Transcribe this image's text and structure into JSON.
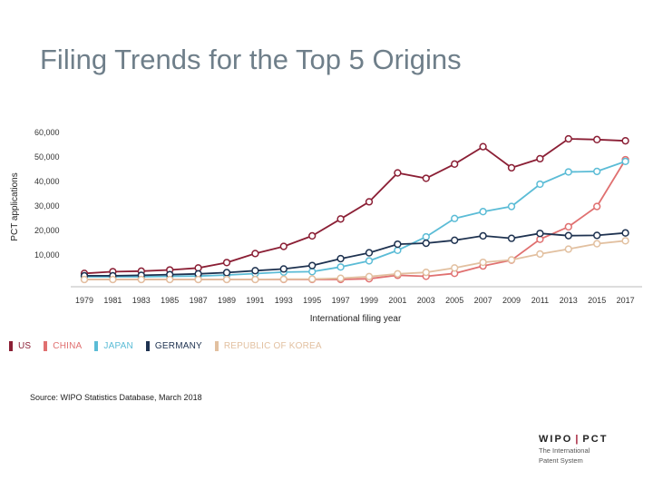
{
  "title": "Filing Trends for the Top 5 Origins",
  "source": "Source: WIPO Statistics Database, March 2018",
  "logo": {
    "left": "WIPO",
    "right": "PCT",
    "sub_line1": "The International",
    "sub_line2": "Patent System"
  },
  "chart_data": {
    "type": "line",
    "title": "",
    "xlabel": "International filing year",
    "ylabel": "PCT applications",
    "x": [
      1979,
      1981,
      1983,
      1985,
      1987,
      1989,
      1991,
      1993,
      1995,
      1997,
      1999,
      2001,
      2003,
      2005,
      2007,
      2009,
      2011,
      2013,
      2015,
      2017
    ],
    "ylim": [
      0,
      60000
    ],
    "yticks": [
      10000,
      20000,
      30000,
      40000,
      50000,
      60000
    ],
    "ytick_labels": [
      "10,000",
      "20,000",
      "30,000",
      "40,000",
      "50,000",
      "60,000"
    ],
    "legend_position": "bottom",
    "series": [
      {
        "name": "US",
        "color": "#8b1f35",
        "values": [
          2500,
          3200,
          3400,
          3900,
          4700,
          6900,
          10600,
          13500,
          17800,
          24700,
          31700,
          43500,
          41300,
          47100,
          54200,
          45600,
          49300,
          57400,
          57100,
          56600
        ]
      },
      {
        "name": "CHINA",
        "color": "#e07070",
        "values": [
          0,
          0,
          0,
          0,
          0,
          0,
          0,
          0,
          0,
          0,
          300,
          1700,
          1300,
          2500,
          5500,
          7900,
          16400,
          21500,
          29800,
          48900
        ]
      },
      {
        "name": "JAPAN",
        "color": "#5bbcd6",
        "values": [
          1100,
          1100,
          1100,
          1300,
          1400,
          1800,
          2400,
          3000,
          3200,
          5100,
          7600,
          11900,
          17400,
          24900,
          27700,
          29800,
          38900,
          43900,
          44100,
          48200
        ]
      },
      {
        "name": "GERMANY",
        "color": "#1e3250",
        "values": [
          1500,
          1500,
          1700,
          2000,
          2300,
          2800,
          3600,
          4300,
          5700,
          8500,
          10900,
          14400,
          14800,
          16000,
          17800,
          16800,
          18800,
          17900,
          18000,
          19000
        ]
      },
      {
        "name": "REPUBLIC OF KOREA",
        "color": "#e2c0a0",
        "values": [
          0,
          0,
          0,
          0,
          0,
          0,
          0,
          100,
          200,
          500,
          1200,
          2300,
          2900,
          4700,
          7000,
          8000,
          10400,
          12400,
          14600,
          15800
        ]
      }
    ]
  }
}
